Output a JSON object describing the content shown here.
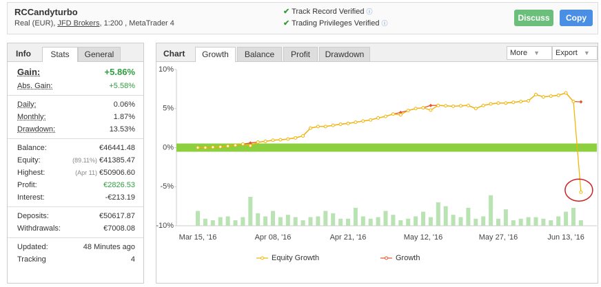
{
  "header": {
    "title": "RCCandyturbo",
    "subtitle_parts": [
      "Real (EUR), ",
      "JFD Brokers",
      ", 1:200 , MetaTrader 4"
    ],
    "verifications": [
      "Track Record Verified",
      "Trading Privileges Verified"
    ],
    "buttons": [
      "Discuss",
      "Copy"
    ]
  },
  "stats": {
    "tabs": [
      "Info",
      "Stats",
      "General"
    ],
    "groups": [
      [
        {
          "label": "Gain:",
          "value": "+5.86%",
          "color": "#2e9e3e"
        },
        {
          "label": "Abs. Gain:",
          "value": "+5.58%",
          "color": "#2e9e3e"
        }
      ],
      [
        {
          "label": "Daily:",
          "value": "0.06%"
        },
        {
          "label": "Monthly:",
          "value": "1.87%"
        },
        {
          "label": "Drawdown:",
          "value": "13.53%"
        }
      ],
      [
        {
          "label": "Balance:",
          "value": "€46441.48"
        },
        {
          "label": "Equity:",
          "note": "(89.11%)",
          "value": "€41385.47"
        },
        {
          "label": "Highest:",
          "note": "(Apr 11)",
          "value": "€50906.60"
        },
        {
          "label": "Profit:",
          "value": "€2826.53",
          "color": "#2e9e3e"
        },
        {
          "label": "Interest:",
          "value": "-€213.19"
        }
      ],
      [
        {
          "label": "Deposits:",
          "value": "€50617.87"
        },
        {
          "label": "Withdrawals:",
          "value": "€7008.08"
        }
      ],
      [
        {
          "label": "Updated:",
          "value": "48 Minutes ago"
        },
        {
          "label": "Tracking",
          "value": "4"
        }
      ]
    ]
  },
  "chart": {
    "tabs": [
      "Chart",
      "Growth",
      "Balance",
      "Profit",
      "Drawdown"
    ],
    "menus": [
      "More",
      "Export"
    ],
    "chart_data": {
      "type": "line",
      "categories": [
        "Mar 15, '16",
        null,
        null,
        null,
        null,
        null,
        null,
        null,
        null,
        null,
        "Apr 08, '16",
        null,
        null,
        null,
        null,
        null,
        null,
        null,
        null,
        null,
        "Apr 21, '16",
        null,
        null,
        null,
        null,
        null,
        null,
        null,
        null,
        null,
        "May 12, '16",
        null,
        null,
        null,
        null,
        null,
        null,
        null,
        null,
        null,
        "May 27, '16",
        null,
        null,
        null,
        null,
        null,
        null,
        null,
        null,
        "Jun 13, '16",
        null,
        null
      ],
      "series": [
        {
          "name": "Equity Growth",
          "color": "#f2b705",
          "values": [
            0,
            0,
            0.05,
            0.1,
            0.2,
            0.3,
            0.45,
            0.25,
            0.7,
            0.8,
            0.95,
            1.0,
            1.1,
            1.25,
            1.5,
            2.5,
            2.7,
            2.7,
            2.85,
            3.0,
            3.1,
            3.25,
            3.4,
            3.55,
            3.8,
            4.0,
            4.3,
            4.2,
            4.75,
            5.0,
            5.1,
            4.8,
            5.4,
            5.35,
            5.3,
            5.35,
            5.4,
            5.0,
            5.4,
            5.6,
            5.7,
            5.7,
            5.8,
            5.9,
            6.0,
            6.8,
            6.5,
            6.6,
            6.7,
            7.0,
            5.9,
            -5.7
          ]
        },
        {
          "name": "Growth",
          "color": "#e4572e",
          "values": [
            0,
            0,
            0.05,
            0.1,
            0.2,
            0.3,
            0.45,
            0.6,
            0.7,
            0.8,
            0.95,
            1.0,
            1.1,
            1.25,
            1.5,
            2.5,
            2.7,
            2.7,
            2.85,
            3.0,
            3.1,
            3.25,
            3.4,
            3.55,
            3.8,
            4.0,
            4.3,
            4.5,
            4.75,
            5.0,
            5.1,
            5.4,
            5.4,
            5.35,
            5.3,
            5.35,
            5.4,
            5.0,
            5.4,
            5.6,
            5.7,
            5.7,
            5.8,
            5.9,
            6.0,
            6.8,
            6.5,
            6.6,
            6.7,
            7.0,
            5.9,
            5.86
          ]
        }
      ],
      "bars": {
        "color": "#b9e3b3",
        "values": [
          1.9,
          0.9,
          0.7,
          1.1,
          1.2,
          0.7,
          1.1,
          3.7,
          1.6,
          1.2,
          1.9,
          1.1,
          1.4,
          1.1,
          0.7,
          1.1,
          1.2,
          1.9,
          1.6,
          0.9,
          0.9,
          2.3,
          1.2,
          0.9,
          1.1,
          1.9,
          1.4,
          0.7,
          0.9,
          1.2,
          1.8,
          1.1,
          3.0,
          2.5,
          1.4,
          1.1,
          2.3,
          0.9,
          1.2,
          3.9,
          0.9,
          2.1,
          0.7,
          0.9,
          1.1,
          1.1,
          0.9,
          0.7,
          1.2,
          1.8,
          2.3,
          0.7
        ]
      },
      "ylim": [
        -10,
        10
      ],
      "yticks": [
        {
          "value": 10,
          "label": "10%"
        },
        {
          "value": 5,
          "label": "5%"
        },
        {
          "value": 0,
          "label": "0%"
        },
        {
          "value": -5,
          "label": "-5%"
        },
        {
          "value": -10,
          "label": "-10%"
        }
      ],
      "zero_band_color": "#8ccf3f"
    }
  }
}
